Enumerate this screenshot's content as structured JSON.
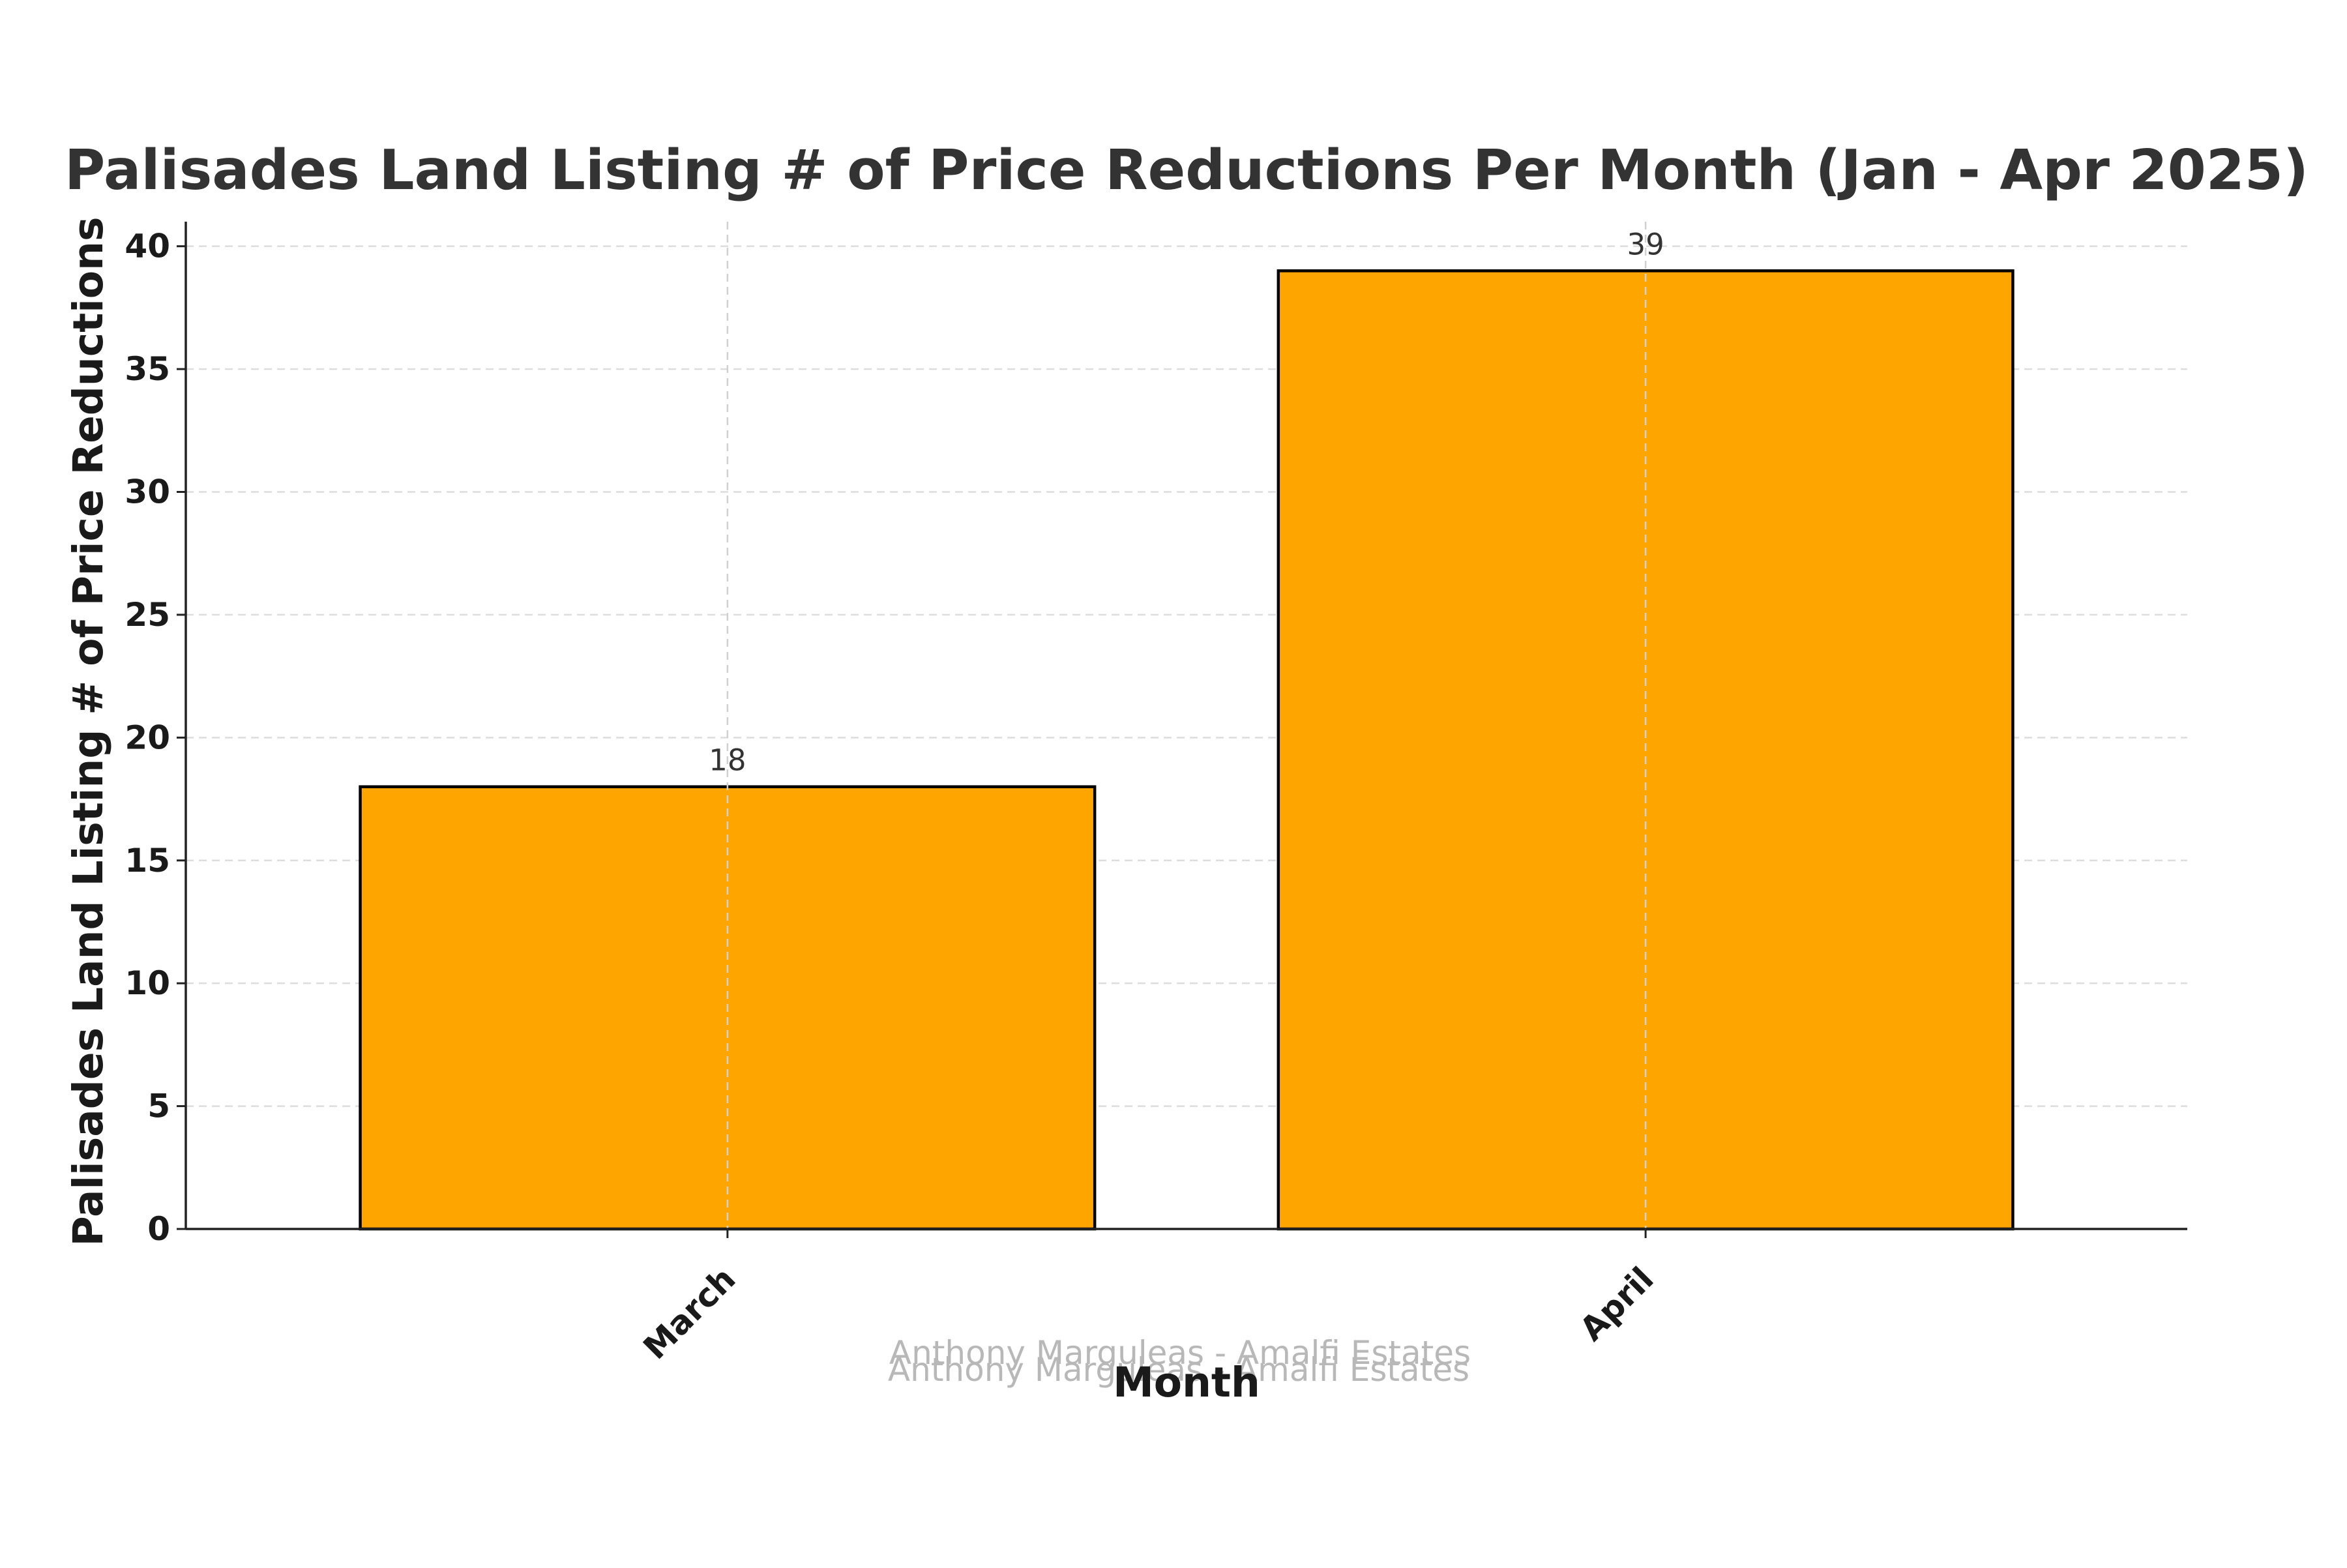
{
  "chart_data": {
    "type": "bar",
    "title": "Palisades Land Listing # of Price Reductions Per Month (Jan - Apr 2025)",
    "xlabel": "Month",
    "ylabel": "Palisades Land Listing # of Price Reductions",
    "categories": [
      "March",
      "April"
    ],
    "values": [
      18,
      39
    ],
    "data_labels": [
      "18",
      "39"
    ],
    "ylim": [
      0,
      41
    ],
    "yticks": [
      0,
      5,
      10,
      15,
      20,
      25,
      30,
      35,
      40
    ],
    "bar_color": "#FFA500",
    "bar_edge_color": "#000000",
    "grid": true,
    "grid_style": "dashed",
    "xtick_rotation": 45
  },
  "watermark": {
    "text": "Anthony Marguleas - Amalfi Estates"
  }
}
